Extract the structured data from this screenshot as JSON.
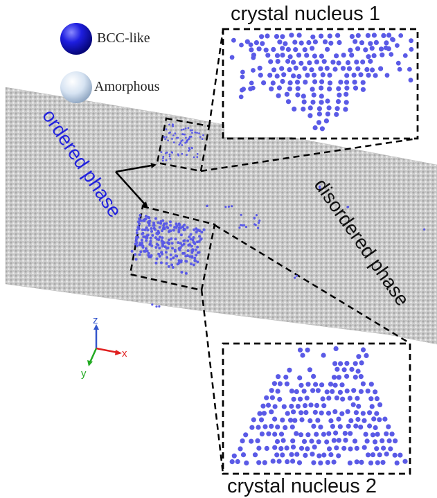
{
  "legend": {
    "bcc_label": "BCC-like",
    "amorphous_label": "Amorphous",
    "bcc_color": "#1a1ad0",
    "amorphous_color": "#d8e4f2"
  },
  "labels": {
    "nucleus1": "crystal nucleus 1",
    "nucleus2": "crystal nucleus 2",
    "ordered_phase": "ordered phase",
    "disordered_phase": "disordered phase"
  },
  "axes": {
    "z": "z",
    "x": "x",
    "y": "y",
    "z_color": "#3355cc",
    "x_color": "#e02020",
    "y_color": "#22aa22"
  },
  "colors": {
    "atom_blue": "#5a5ae6",
    "slab_grey": "#c8c8c8",
    "ordered_text": "#2222dd"
  }
}
